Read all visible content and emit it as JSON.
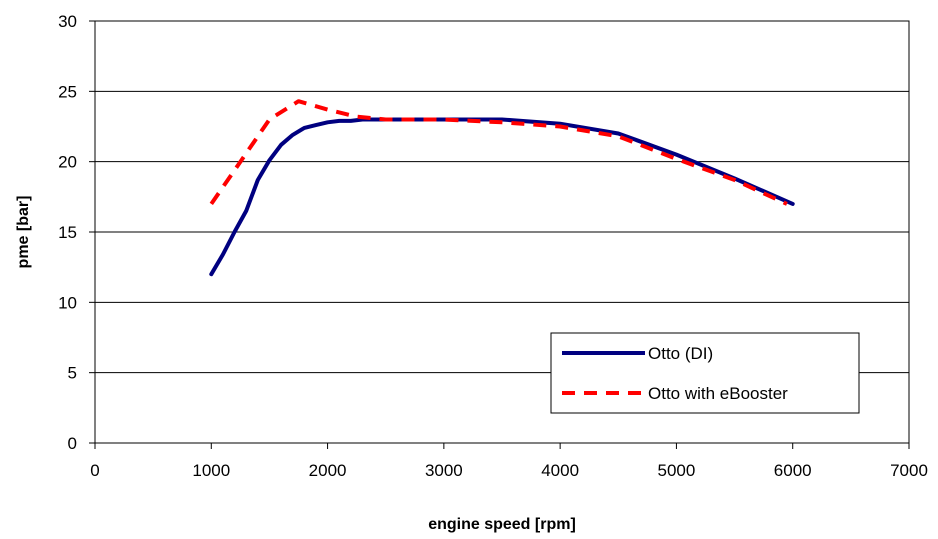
{
  "chart_data": {
    "type": "line",
    "xlabel": "engine speed [rpm]",
    "ylabel": "pme [bar]",
    "xlim": [
      0,
      7000
    ],
    "ylim": [
      0,
      30
    ],
    "x_ticks": [
      0,
      1000,
      2000,
      3000,
      4000,
      5000,
      6000,
      7000
    ],
    "y_ticks": [
      0,
      5,
      10,
      15,
      20,
      25,
      30
    ],
    "grid": "horizontal",
    "legend_position": "bottom-right",
    "series": [
      {
        "name": "Otto (DI)",
        "color": "#000080",
        "style": "solid",
        "x": [
          1000,
          1100,
          1200,
          1300,
          1400,
          1500,
          1600,
          1700,
          1800,
          1900,
          2000,
          2100,
          2200,
          2300,
          2500,
          3000,
          3500,
          4000,
          4500,
          5000,
          5500,
          6000
        ],
        "y": [
          12.0,
          13.4,
          15.0,
          16.5,
          18.7,
          20.1,
          21.2,
          21.9,
          22.4,
          22.6,
          22.8,
          22.9,
          22.9,
          23.0,
          23.0,
          23.0,
          23.0,
          22.7,
          22.0,
          20.5,
          18.8,
          17.0
        ]
      },
      {
        "name": "Otto with eBooster",
        "color": "#ff0000",
        "style": "dashed",
        "x": [
          1000,
          1250,
          1500,
          1750,
          2000,
          2250,
          2500,
          3000,
          3500,
          4000,
          4500,
          5000,
          5500,
          5950
        ],
        "y": [
          17.0,
          20.0,
          23.0,
          24.3,
          23.7,
          23.2,
          23.0,
          23.0,
          22.8,
          22.5,
          21.8,
          20.2,
          18.7,
          17.0
        ]
      }
    ]
  }
}
